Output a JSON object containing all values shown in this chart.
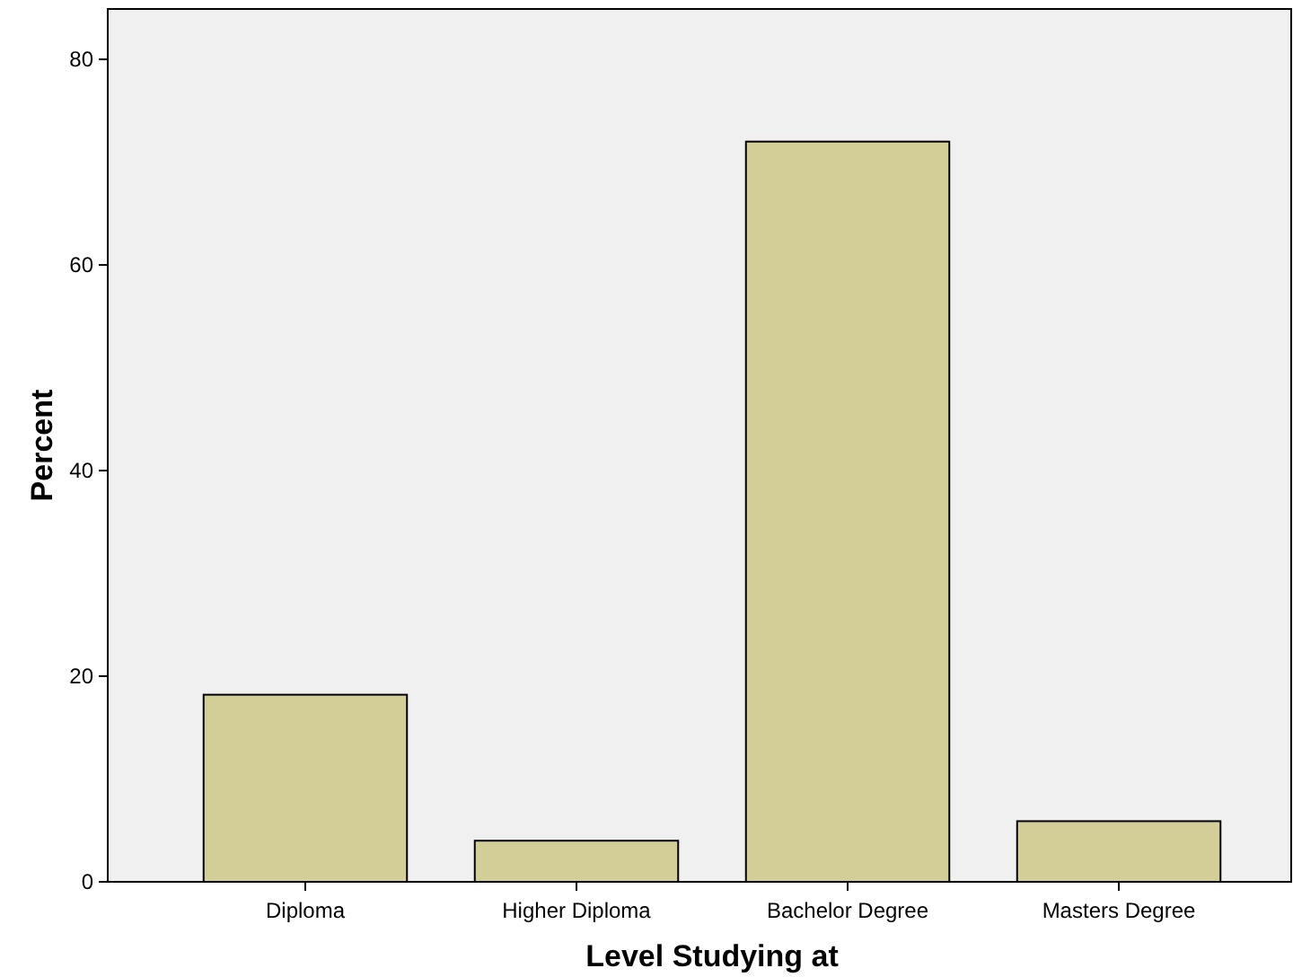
{
  "chart_data": {
    "type": "bar",
    "xlabel": "Level Studying at",
    "ylabel": "Percent",
    "categories": [
      "Diploma",
      "Higher Diploma",
      "Bachelor Degree",
      "Masters Degree"
    ],
    "values": [
      18.2,
      4.0,
      72.0,
      5.9
    ],
    "color": "#d3ce97",
    "ylim": [
      0,
      84.9
    ],
    "yticks": [
      0,
      20,
      40,
      60,
      80
    ],
    "grid": false
  }
}
